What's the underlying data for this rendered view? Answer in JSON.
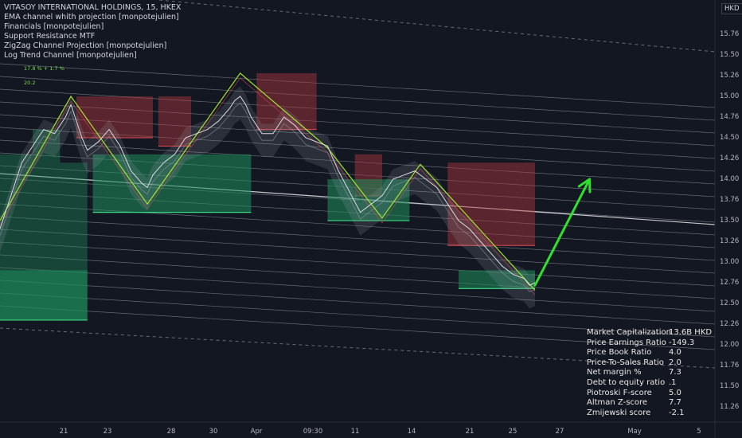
{
  "header": {
    "title": "VITASOY INTERNATIONAL HOLDINGS, 15, HKEX",
    "indicators": [
      "EMA channel whith projection [monpotejulien]",
      "Financials [monpotejulien]",
      "Support Resistance MTF",
      "ZigZag Channel Projection [monpotejulien]",
      "Log Trend Channel [monpotejulien]"
    ],
    "annotation_pct": "17.8 % + 1.7 %",
    "annotation_val": "20.2",
    "currency": "HKD"
  },
  "financials": [
    {
      "label": "Market Capitalization",
      "value": "13.6B  HKD"
    },
    {
      "label": "Price Earnings Ratio",
      "value": "-149.3"
    },
    {
      "label": "Price Book Ratio",
      "value": "4.0"
    },
    {
      "label": "Price-To-Sales Ratio",
      "value": "2.0"
    },
    {
      "label": "Net margin %",
      "value": "7.3"
    },
    {
      "label": "Debt to equity ratio",
      "value": ".1"
    },
    {
      "label": "Piotroski F-score",
      "value": "5.0"
    },
    {
      "label": "Altman Z-score",
      "value": "7.7"
    },
    {
      "label": "Zmijewski score",
      "value": "-2.1"
    }
  ],
  "chart_data": {
    "type": "line",
    "y_ticks": [
      "15.76",
      "15.50",
      "15.26",
      "15.00",
      "14.76",
      "14.50",
      "14.26",
      "14.00",
      "13.76",
      "13.50",
      "13.26",
      "13.00",
      "12.76",
      "12.50",
      "12.26",
      "12.00",
      "11.76",
      "11.50",
      "11.26"
    ],
    "ylim": [
      11.26,
      15.76
    ],
    "x_ticks": [
      "21",
      "23",
      "28",
      "30",
      "Apr",
      "09:30",
      "11",
      "14",
      "21",
      "25",
      "27",
      "May",
      "5"
    ],
    "zigzag": [
      [
        0,
        13.5
      ],
      [
        13,
        15.0
      ],
      [
        27,
        13.7
      ],
      [
        44,
        15.28
      ],
      [
        60,
        14.38
      ],
      [
        70,
        13.53
      ],
      [
        77,
        14.18
      ],
      [
        98,
        12.66
      ]
    ],
    "price": [
      [
        0,
        13.4
      ],
      [
        2,
        13.8
      ],
      [
        4,
        14.2
      ],
      [
        6,
        14.4
      ],
      [
        8,
        14.6
      ],
      [
        10,
        14.55
      ],
      [
        12,
        14.75
      ],
      [
        13,
        14.9
      ],
      [
        14,
        14.7
      ],
      [
        15,
        14.5
      ],
      [
        16,
        14.35
      ],
      [
        18,
        14.45
      ],
      [
        20,
        14.6
      ],
      [
        22,
        14.4
      ],
      [
        24,
        14.1
      ],
      [
        26,
        13.95
      ],
      [
        27,
        13.9
      ],
      [
        28,
        14.05
      ],
      [
        30,
        14.2
      ],
      [
        32,
        14.3
      ],
      [
        34,
        14.5
      ],
      [
        36,
        14.55
      ],
      [
        38,
        14.6
      ],
      [
        40,
        14.7
      ],
      [
        42,
        14.85
      ],
      [
        43,
        14.95
      ],
      [
        44,
        15.0
      ],
      [
        45,
        14.9
      ],
      [
        46,
        14.75
      ],
      [
        48,
        14.55
      ],
      [
        50,
        14.55
      ],
      [
        52,
        14.75
      ],
      [
        54,
        14.65
      ],
      [
        56,
        14.5
      ],
      [
        58,
        14.45
      ],
      [
        60,
        14.4
      ],
      [
        62,
        14.1
      ],
      [
        64,
        13.85
      ],
      [
        66,
        13.6
      ],
      [
        68,
        13.7
      ],
      [
        70,
        13.8
      ],
      [
        72,
        14.0
      ],
      [
        74,
        14.05
      ],
      [
        76,
        14.1
      ],
      [
        78,
        14.0
      ],
      [
        80,
        13.9
      ],
      [
        82,
        13.7
      ],
      [
        84,
        13.5
      ],
      [
        86,
        13.4
      ],
      [
        88,
        13.25
      ],
      [
        90,
        13.1
      ],
      [
        92,
        12.95
      ],
      [
        94,
        12.85
      ],
      [
        96,
        12.8
      ],
      [
        97,
        12.72
      ],
      [
        98,
        12.75
      ]
    ],
    "projection_arrow": [
      [
        98,
        12.72
      ],
      [
        108,
        14.0
      ]
    ],
    "support_levels": [
      12.3,
      12.7,
      13.55,
      13.7,
      14.3,
      14.4,
      14.75,
      15.0
    ],
    "resistance_boxes": [
      [
        14,
        28,
        14.5,
        15.0
      ],
      [
        29,
        35,
        14.4,
        15.0
      ],
      [
        47,
        58,
        14.6,
        15.28
      ],
      [
        65,
        70,
        13.8,
        14.3
      ],
      [
        82,
        98,
        13.2,
        14.2
      ]
    ],
    "support_boxes": [
      [
        0,
        16,
        12.3,
        12.9
      ],
      [
        17,
        46,
        13.6,
        14.3
      ],
      [
        60,
        75,
        13.5,
        14.0
      ],
      [
        84,
        98,
        12.68,
        12.9
      ]
    ]
  }
}
